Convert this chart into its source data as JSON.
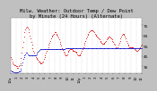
{
  "title": "Milw. Weather: Outdoor Temp / Dew Point",
  "subtitle": "by Minute (24 Hours) (Alternate)",
  "bg_color": "#c0c0c0",
  "plot_bg": "#ffffff",
  "grid_color": "#aaaaaa",
  "temp_color": "#dd0000",
  "dew_color": "#0000cc",
  "ylim": [
    28,
    82
  ],
  "yticks": [
    35,
    45,
    55,
    65,
    75
  ],
  "ytick_labels": [
    "35",
    "45",
    "55",
    "65",
    "75"
  ],
  "temp_values": [
    44,
    42,
    40,
    38,
    37,
    36,
    36,
    35,
    35,
    34,
    34,
    35,
    36,
    38,
    43,
    48,
    54,
    59,
    64,
    68,
    71,
    73,
    74,
    73,
    71,
    68,
    65,
    62,
    59,
    56,
    53,
    50,
    48,
    46,
    44,
    43,
    42,
    41,
    40,
    40,
    39,
    38,
    38,
    39,
    40,
    42,
    44,
    46,
    48,
    50,
    52,
    54,
    56,
    58,
    60,
    62,
    64,
    65,
    66,
    67,
    68,
    68,
    67,
    66,
    65,
    63,
    61,
    59,
    57,
    55,
    53,
    51,
    49,
    48,
    47,
    46,
    46,
    47,
    49,
    50,
    51,
    52,
    52,
    52,
    51,
    50,
    50,
    50,
    49,
    49,
    48,
    47,
    46,
    46,
    46,
    47,
    48,
    50,
    52,
    54,
    56,
    58,
    60,
    62,
    64,
    66,
    67,
    68,
    69,
    70,
    70,
    70,
    70,
    69,
    68,
    67,
    66,
    65,
    64,
    63,
    62,
    61,
    60,
    59,
    58,
    57,
    57,
    57,
    58,
    59,
    60,
    61,
    62,
    63,
    64,
    64,
    63,
    62,
    61,
    60,
    59,
    57,
    56,
    54,
    53,
    53,
    54,
    56,
    58,
    60,
    62,
    64,
    66,
    67,
    67,
    66,
    64,
    62,
    60,
    58,
    56,
    55,
    54,
    54,
    54,
    54,
    54,
    54,
    53,
    52,
    51,
    51,
    50,
    50,
    51,
    52,
    53,
    54,
    55,
    56
  ],
  "dew_values": [
    31,
    30,
    30,
    30,
    29,
    29,
    29,
    29,
    29,
    29,
    29,
    30,
    30,
    31,
    33,
    36,
    39,
    42,
    44,
    46,
    47,
    48,
    48,
    47,
    46,
    46,
    46,
    46,
    46,
    46,
    46,
    46,
    46,
    46,
    46,
    47,
    48,
    49,
    50,
    51,
    52,
    52,
    52,
    52,
    52,
    52,
    52,
    52,
    52,
    52,
    52,
    52,
    52,
    52,
    52,
    52,
    52,
    52,
    52,
    52,
    52,
    52,
    52,
    52,
    52,
    52,
    52,
    52,
    52,
    52,
    52,
    52,
    52,
    52,
    52,
    53,
    53,
    53,
    53,
    53,
    53,
    53,
    53,
    53,
    53,
    53,
    53,
    53,
    53,
    53,
    53,
    53,
    53,
    53,
    53,
    53,
    53,
    53,
    53,
    53,
    53,
    53,
    53,
    53,
    53,
    53,
    53,
    53,
    53,
    53,
    53,
    53,
    53,
    53,
    53,
    53,
    53,
    53,
    53,
    53,
    53,
    53,
    53,
    53,
    53,
    53,
    53,
    53,
    53,
    53,
    53,
    53,
    53,
    53,
    53,
    53,
    53,
    53,
    53,
    53,
    53,
    53,
    53,
    53,
    53,
    53,
    53,
    53,
    53,
    53,
    53,
    53,
    53,
    53,
    53,
    53,
    53,
    53,
    53,
    53,
    53,
    53,
    53,
    53,
    53,
    53,
    53,
    53,
    53,
    53,
    53,
    53,
    53,
    53,
    53,
    53,
    53,
    53,
    53,
    53
  ],
  "n_points": 180,
  "text_color": "#000000",
  "title_fontsize": 4.0,
  "tick_fontsize": 3.2,
  "xlabel_fontsize": 2.8,
  "n_gridlines": 24,
  "xtick_labels": [
    "12a",
    "1",
    "2",
    "3",
    "4",
    "5",
    "6",
    "7",
    "8",
    "9",
    "10",
    "11",
    "12p",
    "1",
    "2",
    "3",
    "4",
    "5",
    "6",
    "7",
    "8",
    "9",
    "10",
    "11"
  ]
}
